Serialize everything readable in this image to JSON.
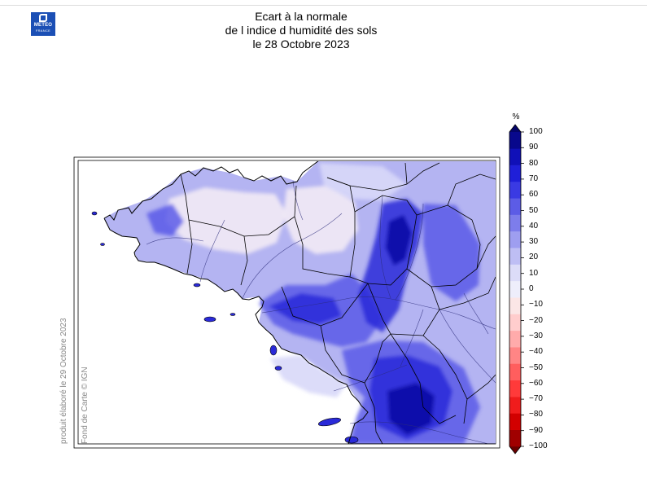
{
  "logo": {
    "line1": "METEO",
    "line2": "FRANCE"
  },
  "title": {
    "line1": "Ecart à la normale",
    "line2": "de l indice d humidité des sols",
    "line3": "le 28 Octobre 2023"
  },
  "credits": {
    "produced": "produit élaboré le 29 Octobre 2023",
    "basemap": "Fond de Carte © IGN"
  },
  "colorbar": {
    "unit": "%",
    "min": -100,
    "max": 100,
    "ticks": [
      "100",
      "90",
      "80",
      "70",
      "60",
      "50",
      "40",
      "30",
      "20",
      "10",
      "0",
      "−10",
      "−20",
      "−30",
      "−40",
      "−50",
      "−60",
      "−70",
      "−80",
      "−90",
      "−100"
    ],
    "colors": [
      "#6b0000",
      "#a00000",
      "#d20000",
      "#f01c1c",
      "#ff3a3a",
      "#ff5e5e",
      "#ff8585",
      "#ffabab",
      "#ffcdcd",
      "#fbe6e6",
      "#eeeefb",
      "#dcdcf8",
      "#bebef4",
      "#9e9ef0",
      "#7d7deb",
      "#5c5ce6",
      "#3a3ae3",
      "#1f1fd8",
      "#1010b8",
      "#08088c",
      "#040468"
    ]
  },
  "map_palette": {
    "land_base": "#b4b4f2",
    "sea": "#ffffff",
    "near_normal": "#efe8f4",
    "slightly_wet": "#d8d8f8",
    "wet": "#5a5ae8",
    "very_wet": "#2a2ad8",
    "extremely_wet": "#0c0ca6",
    "border": "#000000",
    "river": "#2c2c7a"
  }
}
